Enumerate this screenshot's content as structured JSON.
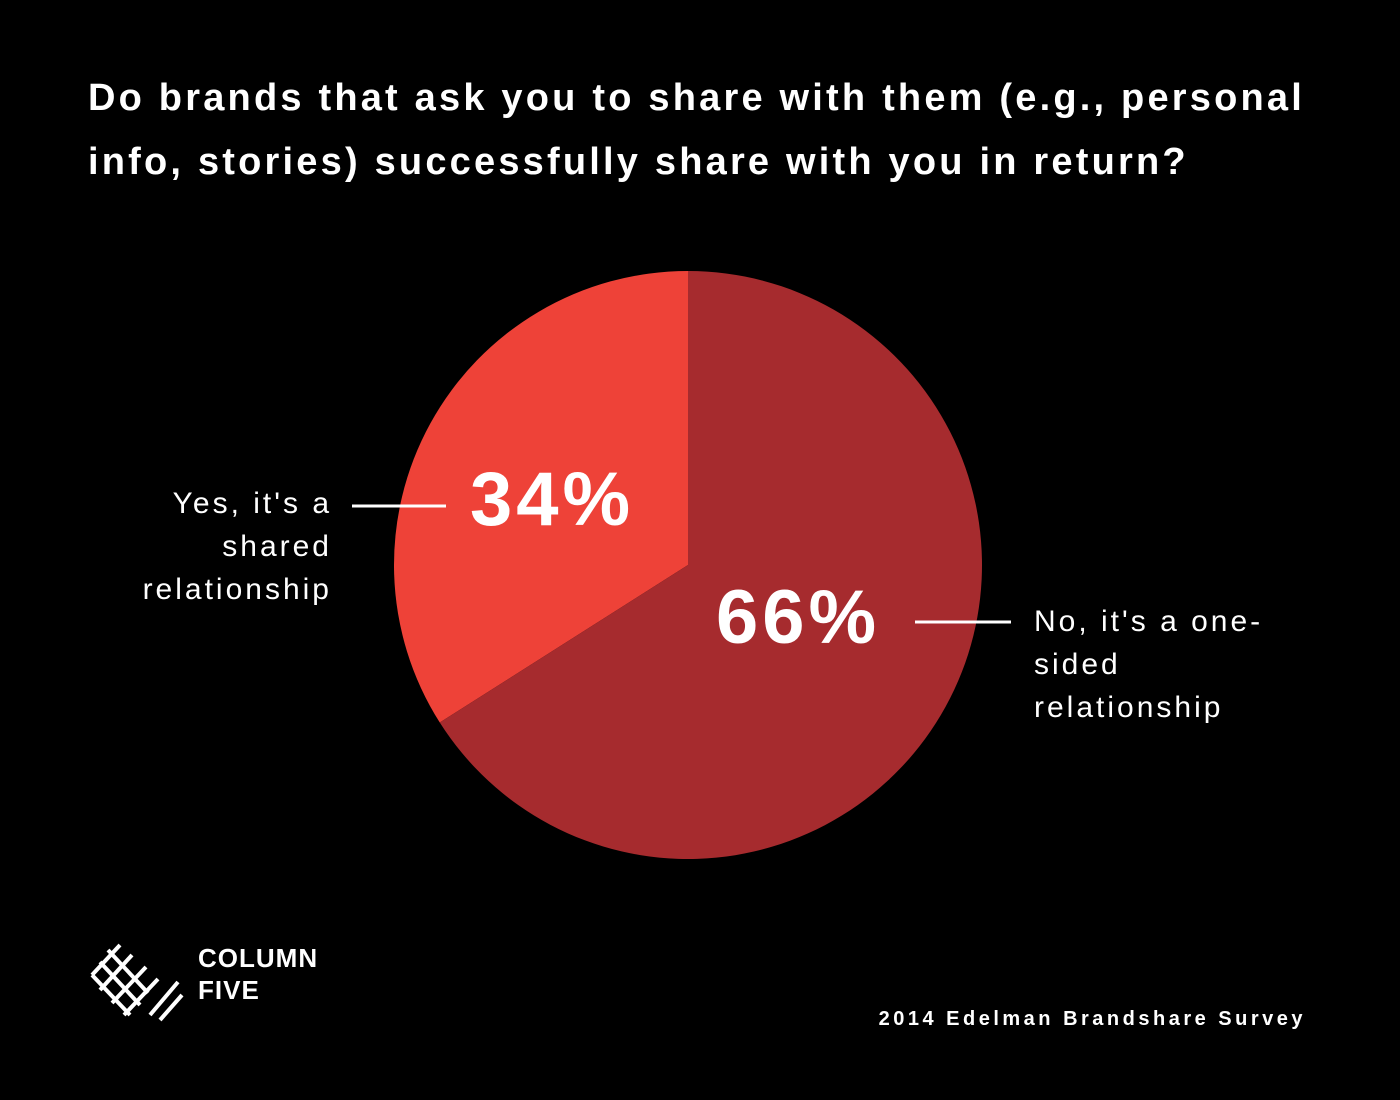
{
  "chart_data": {
    "type": "pie",
    "title": "Do brands that ask you to share with them (e.g., personal info, stories) successfully share with you in return?",
    "categories": [
      "Yes, it's a shared relationship",
      "No, it's a one-sided relationship"
    ],
    "values": [
      34,
      66
    ],
    "value_labels": [
      "34%",
      "66%"
    ],
    "colors": [
      "#ee4238",
      "#a62b2e"
    ],
    "source": "2014 Edelman Brandshare Survey"
  },
  "logo": {
    "text": "COLUMN FIVE"
  }
}
